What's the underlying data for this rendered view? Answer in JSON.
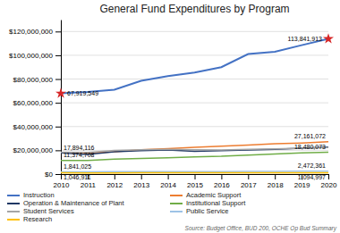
{
  "chart_data": {
    "type": "line",
    "title": "General Fund Expenditures by Program",
    "source": "Source: Budget Office, BUD 200, OCHE Op Bud Summary",
    "x": [
      2010,
      2011,
      2012,
      2013,
      2014,
      2015,
      2016,
      2017,
      2018,
      2019,
      2020
    ],
    "xlim": [
      2010,
      2020
    ],
    "xticks": [
      2010,
      2011,
      2012,
      2013,
      2014,
      2015,
      2016,
      2017,
      2018,
      2019,
      2020
    ],
    "ylim": [
      0,
      130000000
    ],
    "yticks": [
      {
        "value": 0,
        "label": "$0"
      },
      {
        "value": 20000000,
        "label": "$20,000,000"
      },
      {
        "value": 40000000,
        "label": "$40,000,000"
      },
      {
        "value": 60000000,
        "label": "$60,000,000"
      },
      {
        "value": 80000000,
        "label": "$80,000,000"
      },
      {
        "value": 100000000,
        "label": "$100,000,000"
      },
      {
        "value": 120000000,
        "label": "$120,000,000"
      }
    ],
    "grid": true,
    "legend": "bottom",
    "series": [
      {
        "name": "Instruction",
        "color": "#4472C4",
        "marker": "star",
        "values": [
          67919549,
          69200000,
          71000000,
          78500000,
          82500000,
          85500000,
          90000000,
          101000000,
          103000000,
          108500000,
          113841913
        ],
        "value_labels": [
          "67,919,549",
          null,
          null,
          null,
          null,
          null,
          null,
          null,
          null,
          null,
          "113,841,913"
        ]
      },
      {
        "name": "Academic Support",
        "color": "#ED7D31",
        "values": [
          17894116,
          17600000,
          18800000,
          20500000,
          21500000,
          22500000,
          23500000,
          24500000,
          25500000,
          26200000,
          27161072
        ],
        "value_labels": [
          "17,894,116",
          null,
          null,
          null,
          null,
          null,
          null,
          null,
          null,
          null,
          "27,161,072"
        ]
      },
      {
        "name": "Operation & Maintenance of Plant",
        "color": "#1F3864",
        "values": [
          17800000,
          16500000,
          18800000,
          19800000,
          20200000,
          19200000,
          19800000,
          20300000,
          20800000,
          21800000,
          22800000
        ]
      },
      {
        "name": "Institutional Support",
        "color": "#70AD47",
        "values": [
          11374708,
          11500000,
          12500000,
          13200000,
          13800000,
          14500000,
          15000000,
          16000000,
          17000000,
          17800000,
          18480073
        ],
        "value_labels": [
          "11,374,708",
          null,
          null,
          null,
          null,
          null,
          null,
          null,
          null,
          null,
          "18,480,073"
        ]
      },
      {
        "name": "Student Services",
        "color": "#A5A5A5",
        "values": [
          18500000,
          18300000,
          20000000,
          20500000,
          20800000,
          20500000,
          20300000,
          20800000,
          21300000,
          21800000,
          22300000
        ]
      },
      {
        "name": "Public Service",
        "color": "#9DC3E6",
        "values": [
          1841025,
          1900000,
          2000000,
          2100000,
          2050000,
          2100000,
          2150000,
          2200000,
          2300000,
          2400000,
          2472361
        ],
        "value_labels": [
          "1,841,025",
          null,
          null,
          null,
          null,
          null,
          null,
          null,
          null,
          null,
          "2,472,361"
        ]
      },
      {
        "name": "Research",
        "color": "#FFC000",
        "values": [
          1046911,
          1020000,
          1030000,
          1050000,
          1060000,
          1100000,
          1060000,
          1060000,
          1070000,
          1080000,
          1094997
        ],
        "value_labels": [
          "1,046,911",
          null,
          null,
          null,
          null,
          null,
          null,
          null,
          null,
          null,
          "1,094,997"
        ]
      }
    ]
  }
}
